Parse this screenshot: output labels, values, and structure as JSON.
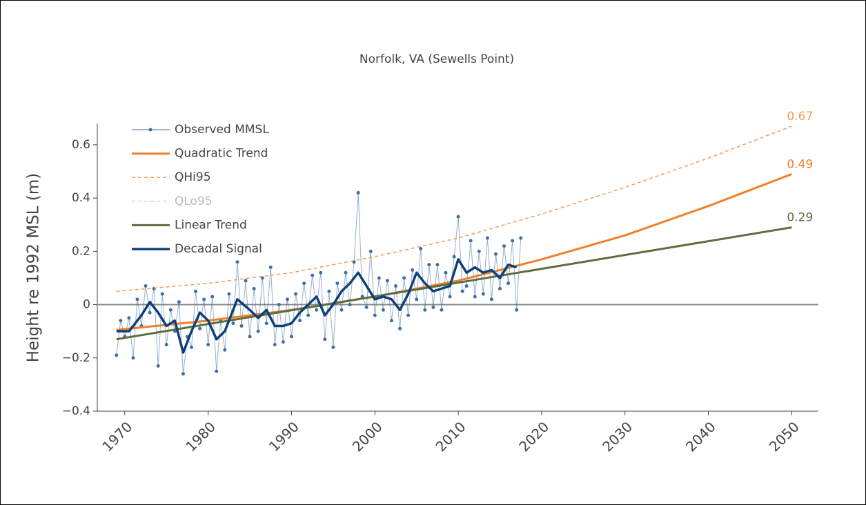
{
  "chart_data": {
    "type": "line",
    "title": "Norfolk, VA (Sewells Point)",
    "y_label": "Height re 1992 MSL (m)",
    "xlim": [
      1966.7,
      2053.2
    ],
    "xticks": [
      1970,
      1980,
      1990,
      2000,
      2010,
      2020,
      2030,
      2040,
      2050
    ],
    "ylim": [
      -0.4,
      0.68
    ],
    "yticks": [
      {
        "value": -0.4,
        "label": "−0.4"
      },
      {
        "value": -0.2,
        "label": "−0.2"
      },
      0,
      0.2,
      0.4,
      0.6
    ],
    "zero_line": true,
    "legend": "top-left",
    "series": [
      {
        "name": "Observed MMSL",
        "color": "#3d6ea5",
        "markers": true,
        "width": 1,
        "x": [
          1969,
          1969.5,
          1970,
          1970.5,
          1971,
          1971.5,
          1972,
          1972.5,
          1973,
          1973.5,
          1974,
          1974.5,
          1975,
          1975.5,
          1976,
          1976.5,
          1977,
          1977.5,
          1978,
          1978.5,
          1979,
          1979.5,
          1980,
          1980.5,
          1981,
          1981.5,
          1982,
          1982.5,
          1983,
          1983.5,
          1984,
          1984.5,
          1985,
          1985.5,
          1986,
          1986.5,
          1987,
          1987.5,
          1988,
          1988.5,
          1989,
          1989.5,
          1990,
          1990.5,
          1991,
          1991.5,
          1992,
          1992.5,
          1993,
          1993.5,
          1994,
          1994.5,
          1995,
          1995.5,
          1996,
          1996.5,
          1997,
          1997.5,
          1998,
          1998.5,
          1999,
          1999.5,
          2000,
          2000.5,
          2001,
          2001.5,
          2002,
          2002.5,
          2003,
          2003.5,
          2004,
          2004.5,
          2005,
          2005.5,
          2006,
          2006.5,
          2007,
          2007.5,
          2008,
          2008.5,
          2009,
          2009.5,
          2010,
          2010.5,
          2011,
          2011.5,
          2012,
          2012.5,
          2013,
          2013.5,
          2014,
          2014.5,
          2015,
          2015.5,
          2016,
          2016.5,
          2017,
          2017.5
        ],
        "values": [
          -0.19,
          -0.06,
          -0.12,
          -0.05,
          -0.2,
          0.02,
          -0.08,
          0.07,
          -0.03,
          0.06,
          -0.23,
          0.04,
          -0.15,
          -0.02,
          -0.1,
          0.01,
          -0.26,
          -0.12,
          -0.16,
          0.05,
          -0.09,
          0.02,
          -0.15,
          0.03,
          -0.25,
          -0.06,
          -0.17,
          0.04,
          -0.07,
          0.16,
          -0.08,
          0.09,
          -0.12,
          0.06,
          -0.1,
          0.1,
          -0.07,
          0.14,
          -0.15,
          0,
          -0.14,
          0.02,
          -0.12,
          0.04,
          -0.06,
          0.08,
          -0.04,
          0.11,
          -0.02,
          0.12,
          -0.13,
          0.05,
          -0.16,
          0.08,
          -0.02,
          0.12,
          0,
          0.16,
          0.42,
          0.03,
          -0.01,
          0.2,
          -0.04,
          0.1,
          -0.02,
          0.09,
          -0.06,
          0.07,
          -0.09,
          0.1,
          -0.04,
          0.13,
          0.02,
          0.21,
          -0.02,
          0.15,
          -0.01,
          0.15,
          -0.02,
          0.12,
          0.03,
          0.18,
          0.33,
          0.05,
          0.07,
          0.24,
          0.03,
          0.2,
          0.04,
          0.25,
          0.02,
          0.19,
          0.06,
          0.22,
          0.08,
          0.24,
          -0.02,
          0.25
        ]
      },
      {
        "name": "Quadratic Trend",
        "color": "#f07f2a",
        "width": 3,
        "label_last": true,
        "x": [
          1969,
          1980,
          1990,
          2000,
          2010,
          2020,
          2030,
          2040,
          2050
        ],
        "values": [
          -0.095,
          -0.06,
          -0.02,
          0.03,
          0.09,
          0.17,
          0.26,
          0.37,
          0.49
        ]
      },
      {
        "name": "QHi95",
        "color": "#f59a50",
        "dash": true,
        "width": 1.5,
        "label_last": true,
        "x": [
          1969,
          1980,
          1990,
          2000,
          2010,
          2020,
          2030,
          2040,
          2050
        ],
        "values": [
          0.05,
          0.08,
          0.12,
          0.18,
          0.25,
          0.34,
          0.44,
          0.55,
          0.67
        ]
      },
      {
        "name": "QLo95",
        "color": "#f8c9a0",
        "dash": true,
        "width": 1.5,
        "visible": false
      },
      {
        "name": "Linear Trend",
        "color": "#5b6e3f",
        "width": 3,
        "label_last": true,
        "x": [
          1969,
          2050
        ],
        "values": [
          -0.13,
          0.29
        ]
      },
      {
        "name": "Decadal Signal",
        "color": "#0f3f7a",
        "width": 3.5,
        "x": [
          1969,
          1970.5,
          1972,
          1973,
          1974,
          1975,
          1976,
          1977,
          1978,
          1979,
          1980,
          1981,
          1982,
          1983,
          1983.5,
          1985,
          1986,
          1987,
          1988,
          1989,
          1990,
          1991,
          1993,
          1994,
          1995,
          1996,
          1997,
          1998,
          1999,
          2000,
          2001,
          2002,
          2003,
          2004,
          2005,
          2006,
          2007,
          2008,
          2009,
          2010,
          2011,
          2012,
          2013,
          2014,
          2015,
          2016,
          2017
        ],
        "values": [
          -0.1,
          -0.1,
          -0.04,
          0.01,
          -0.03,
          -0.08,
          -0.06,
          -0.18,
          -0.1,
          -0.03,
          -0.06,
          -0.13,
          -0.1,
          -0.02,
          0.02,
          -0.02,
          -0.05,
          -0.02,
          -0.08,
          -0.08,
          -0.07,
          -0.03,
          0.03,
          -0.04,
          0,
          0.05,
          0.08,
          0.12,
          0.07,
          0.02,
          0.03,
          0.02,
          -0.02,
          0.04,
          0.12,
          0.08,
          0.05,
          0.06,
          0.07,
          0.17,
          0.12,
          0.14,
          0.12,
          0.13,
          0.1,
          0.15,
          0.14
        ]
      }
    ]
  }
}
